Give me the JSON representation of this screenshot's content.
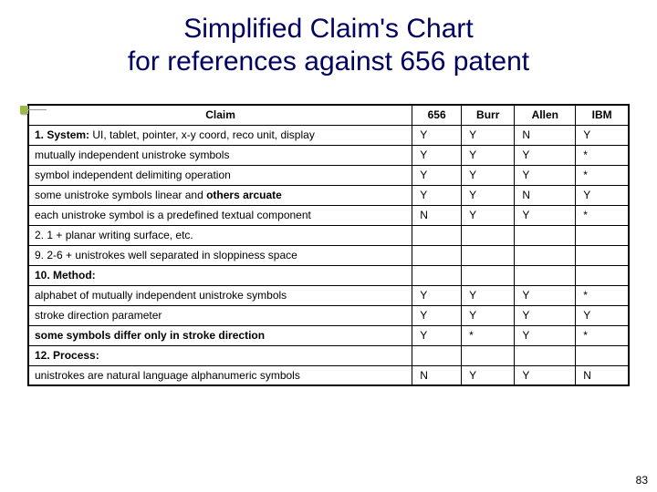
{
  "title_line1": "Simplified Claim's Chart",
  "title_line2": "for references against 656 patent",
  "page_number": "83",
  "headers": {
    "claim": "Claim",
    "c656": "656",
    "burr": "Burr",
    "allen": "Allen",
    "ibm": "IBM"
  },
  "rows": [
    {
      "label_html": "<span class='bold'>1. System:</span> UI, tablet, pointer, x-y coord, reco unit, display",
      "v": [
        "Y",
        "Y",
        "N",
        "Y"
      ]
    },
    {
      "label_html": " mutually independent unistroke symbols",
      "v": [
        "Y",
        "Y",
        "Y",
        "*"
      ]
    },
    {
      "label_html": " symbol independent delimiting operation",
      "v": [
        "Y",
        "Y",
        "Y",
        "*"
      ]
    },
    {
      "label_html": " some unistroke symbols linear and <span class='bold'>others arcuate</span>",
      "v": [
        "Y",
        "Y",
        "N",
        "Y"
      ]
    },
    {
      "label_html": " each unistroke symbol is a predefined textual component",
      "v": [
        "N",
        "Y",
        "Y",
        "*"
      ]
    },
    {
      "label_html": " 2. 1 + planar writing surface, etc.",
      "v": [
        "",
        "",
        "",
        ""
      ]
    },
    {
      "label_html": " 9. 2-6 + unistrokes well separated in sloppiness space",
      "v": [
        "",
        "",
        "",
        ""
      ]
    },
    {
      "label_html": "<span class='bold'>10. Method:</span>",
      "v": [
        "",
        "",
        "",
        ""
      ]
    },
    {
      "label_html": " alphabet of mutually independent unistroke symbols",
      "v": [
        "Y",
        "Y",
        "Y",
        "*"
      ]
    },
    {
      "label_html": " stroke direction parameter",
      "v": [
        "Y",
        "Y",
        "Y",
        "Y"
      ]
    },
    {
      "label_html": " <span class='bold'>some symbols differ only in stroke direction</span>",
      "v": [
        "Y",
        "*",
        "Y",
        "*"
      ]
    },
    {
      "label_html": "<span class='bold'>12. Process:</span>",
      "v": [
        "",
        "",
        "",
        ""
      ]
    },
    {
      "label_html": " unistrokes are natural language alphanumeric symbols",
      "v": [
        "N",
        "Y",
        "Y",
        "N"
      ]
    }
  ]
}
